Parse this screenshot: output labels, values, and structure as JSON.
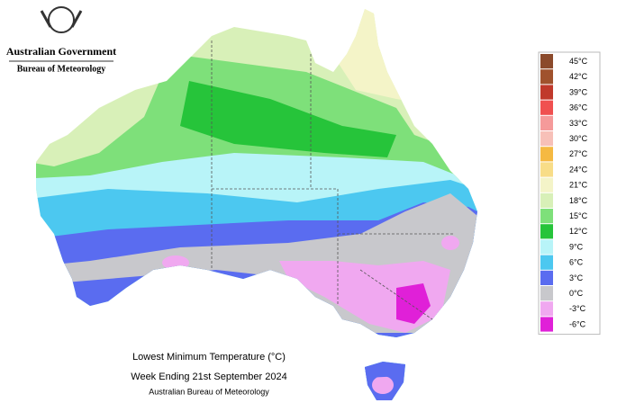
{
  "header": {
    "government": "Australian Government",
    "bureau": "Bureau of Meteorology"
  },
  "title": {
    "line1": "Lowest Minimum Temperature (°C)",
    "line2": "Week Ending 21st September 2024",
    "line3": "Australian Bureau of Meteorology"
  },
  "legend": [
    {
      "label": "45°C",
      "color": "#8b4a2b"
    },
    {
      "label": "42°C",
      "color": "#a0522d"
    },
    {
      "label": "39°C",
      "color": "#c0392b"
    },
    {
      "label": "36°C",
      "color": "#f05050"
    },
    {
      "label": "33°C",
      "color": "#f59a9a"
    },
    {
      "label": "30°C",
      "color": "#f7c0b8"
    },
    {
      "label": "27°C",
      "color": "#f5b942"
    },
    {
      "label": "24°C",
      "color": "#f8dd88"
    },
    {
      "label": "21°C",
      "color": "#f4f4c8"
    },
    {
      "label": "18°C",
      "color": "#d8f0b8"
    },
    {
      "label": "15°C",
      "color": "#7ee07a"
    },
    {
      "label": "12°C",
      "color": "#26c43a"
    },
    {
      "label": "9°C",
      "color": "#b8f4f8"
    },
    {
      "label": "6°C",
      "color": "#4cc8f0"
    },
    {
      "label": "3°C",
      "color": "#5a6cf0"
    },
    {
      "label": "0°C",
      "color": "#c8c8cc"
    },
    {
      "label": "-3°C",
      "color": "#f0a8f0"
    },
    {
      "label": "-6°C",
      "color": "#e020d8"
    }
  ]
}
